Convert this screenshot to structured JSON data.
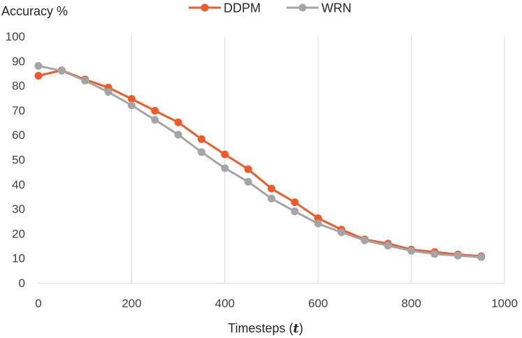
{
  "chart_data": {
    "type": "line",
    "title": "",
    "ylabel": "Accuracy %",
    "xlabel_prefix": "Timesteps (",
    "xlabel_var": "t",
    "xlabel_suffix": ")",
    "xlim": [
      0,
      1000
    ],
    "ylim": [
      0,
      100
    ],
    "x_ticks": [
      0,
      200,
      400,
      600,
      800,
      1000
    ],
    "y_ticks": [
      0,
      10,
      20,
      30,
      40,
      50,
      60,
      70,
      80,
      90,
      100
    ],
    "grid": "vertical",
    "legend_position": "top-center",
    "x": [
      0,
      50,
      100,
      150,
      200,
      250,
      300,
      350,
      400,
      450,
      500,
      550,
      600,
      650,
      700,
      750,
      800,
      850,
      900,
      950
    ],
    "series": [
      {
        "name": "DDPM",
        "color": "#ed5b2d",
        "values": [
          84,
          86.2,
          82.5,
          79.2,
          74.6,
          69.8,
          65.1,
          58.3,
          52.1,
          46.1,
          38.2,
          32.7,
          26.2,
          21.6,
          17.6,
          15.9,
          13.5,
          12.5,
          11.5,
          10.8
        ]
      },
      {
        "name": "WRN",
        "color": "#a5a5a5",
        "values": [
          88,
          86,
          82,
          77.4,
          72,
          66.1,
          60.1,
          53,
          46.5,
          41,
          34.2,
          29,
          24,
          20.5,
          17.2,
          15.1,
          13,
          11.7,
          11,
          10.4
        ]
      }
    ]
  }
}
